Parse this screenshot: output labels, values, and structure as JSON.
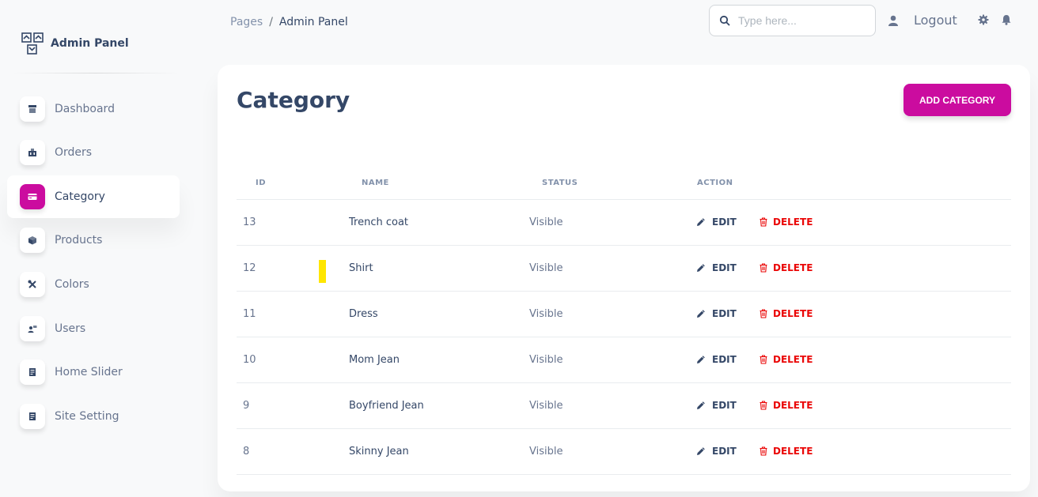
{
  "sidebar": {
    "brand": "Admin Panel",
    "items": [
      {
        "label": "Dashboard",
        "icon": "shop-icon"
      },
      {
        "label": "Orders",
        "icon": "office-icon"
      },
      {
        "label": "Category",
        "icon": "credit-card-icon",
        "active": true
      },
      {
        "label": "Products",
        "icon": "box-3d-icon"
      },
      {
        "label": "Colors",
        "icon": "settings-tools-icon"
      },
      {
        "label": "Users",
        "icon": "customer-support-icon"
      },
      {
        "label": "Home Slider",
        "icon": "document-icon"
      },
      {
        "label": "Site Setting",
        "icon": "document-icon"
      }
    ]
  },
  "header": {
    "breadcrumb": [
      "Pages",
      "Admin Panel"
    ],
    "search_placeholder": "Type here...",
    "logout_label": "Logout"
  },
  "card": {
    "title": "Category",
    "add_button": "ADD CATEGORY",
    "columns": [
      "ID",
      "NAME",
      "STATUS",
      "ACTION"
    ],
    "edit_label": "EDIT",
    "delete_label": "DELETE",
    "rows": [
      {
        "id": "13",
        "name": "Trench coat",
        "status": "Visible"
      },
      {
        "id": "12",
        "name": "Shirt",
        "status": "Visible"
      },
      {
        "id": "11",
        "name": "Dress",
        "status": "Visible"
      },
      {
        "id": "10",
        "name": "Mom Jean",
        "status": "Visible"
      },
      {
        "id": "9",
        "name": "Boyfriend Jean",
        "status": "Visible"
      },
      {
        "id": "8",
        "name": "Skinny Jean",
        "status": "Visible"
      }
    ]
  },
  "colors": {
    "accent": "#cb0c9f",
    "danger": "#ea0606",
    "text": "#344767",
    "muted": "#67748e"
  }
}
